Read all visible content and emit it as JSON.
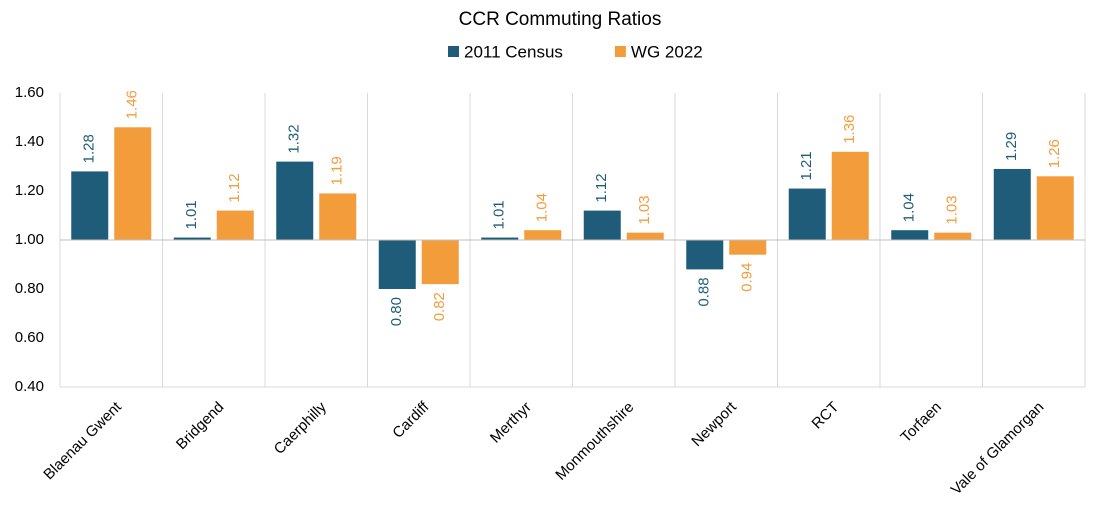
{
  "chart_data": {
    "type": "bar",
    "title": "CCR Commuting Ratios",
    "categories": [
      "Blaenau Gwent",
      "Bridgend",
      "Caerphilly",
      "Cardiff",
      "Merthyr",
      "Monmouthshire",
      "Newport",
      "RCT",
      "Torfaen",
      "Vale of Glamorgan"
    ],
    "series": [
      {
        "name": "2011 Census",
        "color": "#1f5c7a",
        "values": [
          1.28,
          1.01,
          1.32,
          0.8,
          1.01,
          1.12,
          0.88,
          1.21,
          1.04,
          1.29
        ],
        "value_labels": [
          "1.28",
          "1.01",
          "1.32",
          "0.80",
          "1.01",
          "1.12",
          "0.88",
          "1.21",
          "1.04",
          "1.29"
        ]
      },
      {
        "name": "WG 2022",
        "color": "#f39c3c",
        "values": [
          1.46,
          1.12,
          1.19,
          0.82,
          1.04,
          1.03,
          0.94,
          1.36,
          1.03,
          1.26
        ],
        "value_labels": [
          "1.46",
          "1.12",
          "1.19",
          "0.82",
          "1.04",
          "1.03",
          "0.94",
          "1.36",
          "1.03",
          "1.26"
        ]
      }
    ],
    "ylim": [
      0.4,
      1.6
    ],
    "yticks": [
      {
        "value": 0.4,
        "label": "0.40"
      },
      {
        "value": 0.6,
        "label": "0.60"
      },
      {
        "value": 0.8,
        "label": "0.80"
      },
      {
        "value": 1.0,
        "label": "1.00"
      },
      {
        "value": 1.2,
        "label": "1.20"
      },
      {
        "value": 1.4,
        "label": "1.40"
      },
      {
        "value": 1.6,
        "label": "1.60"
      }
    ],
    "y_axis_crosses": 1.0,
    "legend": "top"
  }
}
